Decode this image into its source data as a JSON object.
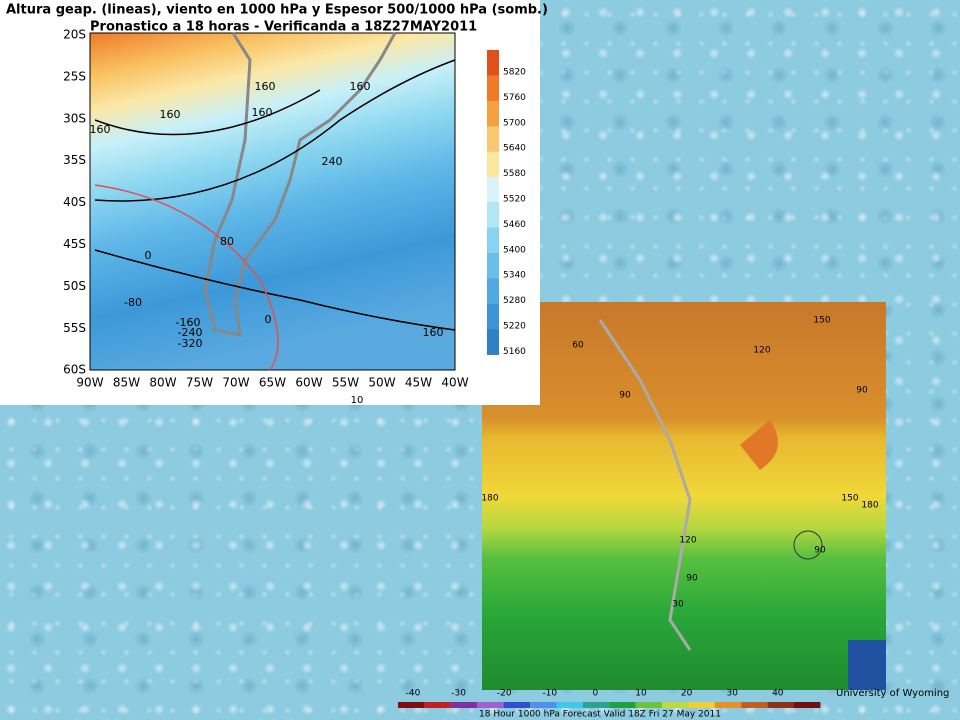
{
  "map1": {
    "title": [
      "Altura geap. (lineas), viento en 1000 hPa y Espesor 500/1000 hPa (somb.)",
      "Pronastico a 18 horas - Verificanda a 18Z27MAY2011"
    ],
    "lat_labels": [
      "20S",
      "25S",
      "30S",
      "35S",
      "40S",
      "45S",
      "50S",
      "55S",
      "60S"
    ],
    "lon_labels": [
      "90W",
      "85W",
      "80W",
      "75W",
      "70W",
      "65W",
      "60W",
      "55W",
      "50W",
      "45W",
      "40W"
    ],
    "colorbar": [
      5820,
      5760,
      5700,
      5640,
      5580,
      5520,
      5460,
      5400,
      5340,
      5280,
      5220,
      5160
    ],
    "wind_scale": "10",
    "contour_labels": [
      "160",
      "160",
      "160",
      "160",
      "160",
      "240",
      "80",
      "0",
      "-80",
      "-160",
      "-240",
      "-320",
      "0",
      "160"
    ]
  },
  "map2": {
    "colorbar": [
      -40,
      -30,
      -20,
      -10,
      0,
      10,
      20,
      30,
      40
    ],
    "caption": "18 Hour 1000 hPa Forecast Valid 18Z Fri 27 May 2011",
    "credit": "University of Wyoming",
    "contour_labels": [
      "150",
      "120",
      "90",
      "90",
      "180",
      "150",
      "120",
      "90",
      "30",
      "60",
      "180",
      "90"
    ]
  }
}
